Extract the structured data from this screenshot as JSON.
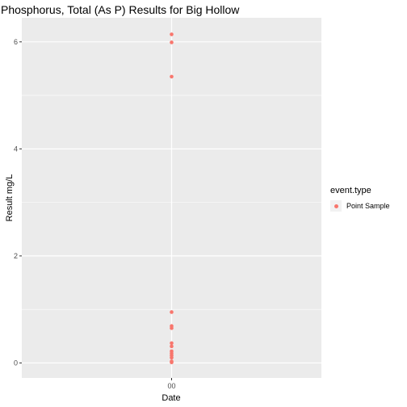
{
  "chart_data": {
    "type": "scatter",
    "title": "Phosphorus, Total (As P) Results for Big Hollow",
    "xlabel": "Date",
    "ylabel": "Result mg/L",
    "x_tick_labels": [
      "00"
    ],
    "y_ticks": [
      0,
      2,
      4,
      6
    ],
    "ylim": [
      -0.28,
      6.45
    ],
    "grid": true,
    "legend_position": "right",
    "legend_title": "event.type",
    "series": [
      {
        "name": "Point Sample",
        "color": "#F8766D",
        "x": [
          "00",
          "00",
          "00",
          "00",
          "00",
          "00",
          "00",
          "00",
          "00",
          "00",
          "00",
          "00",
          "00",
          "00"
        ],
        "y": [
          6.14,
          5.99,
          5.35,
          0.95,
          0.69,
          0.65,
          0.37,
          0.31,
          0.22,
          0.18,
          0.14,
          0.1,
          0.03,
          0.01
        ]
      }
    ]
  }
}
